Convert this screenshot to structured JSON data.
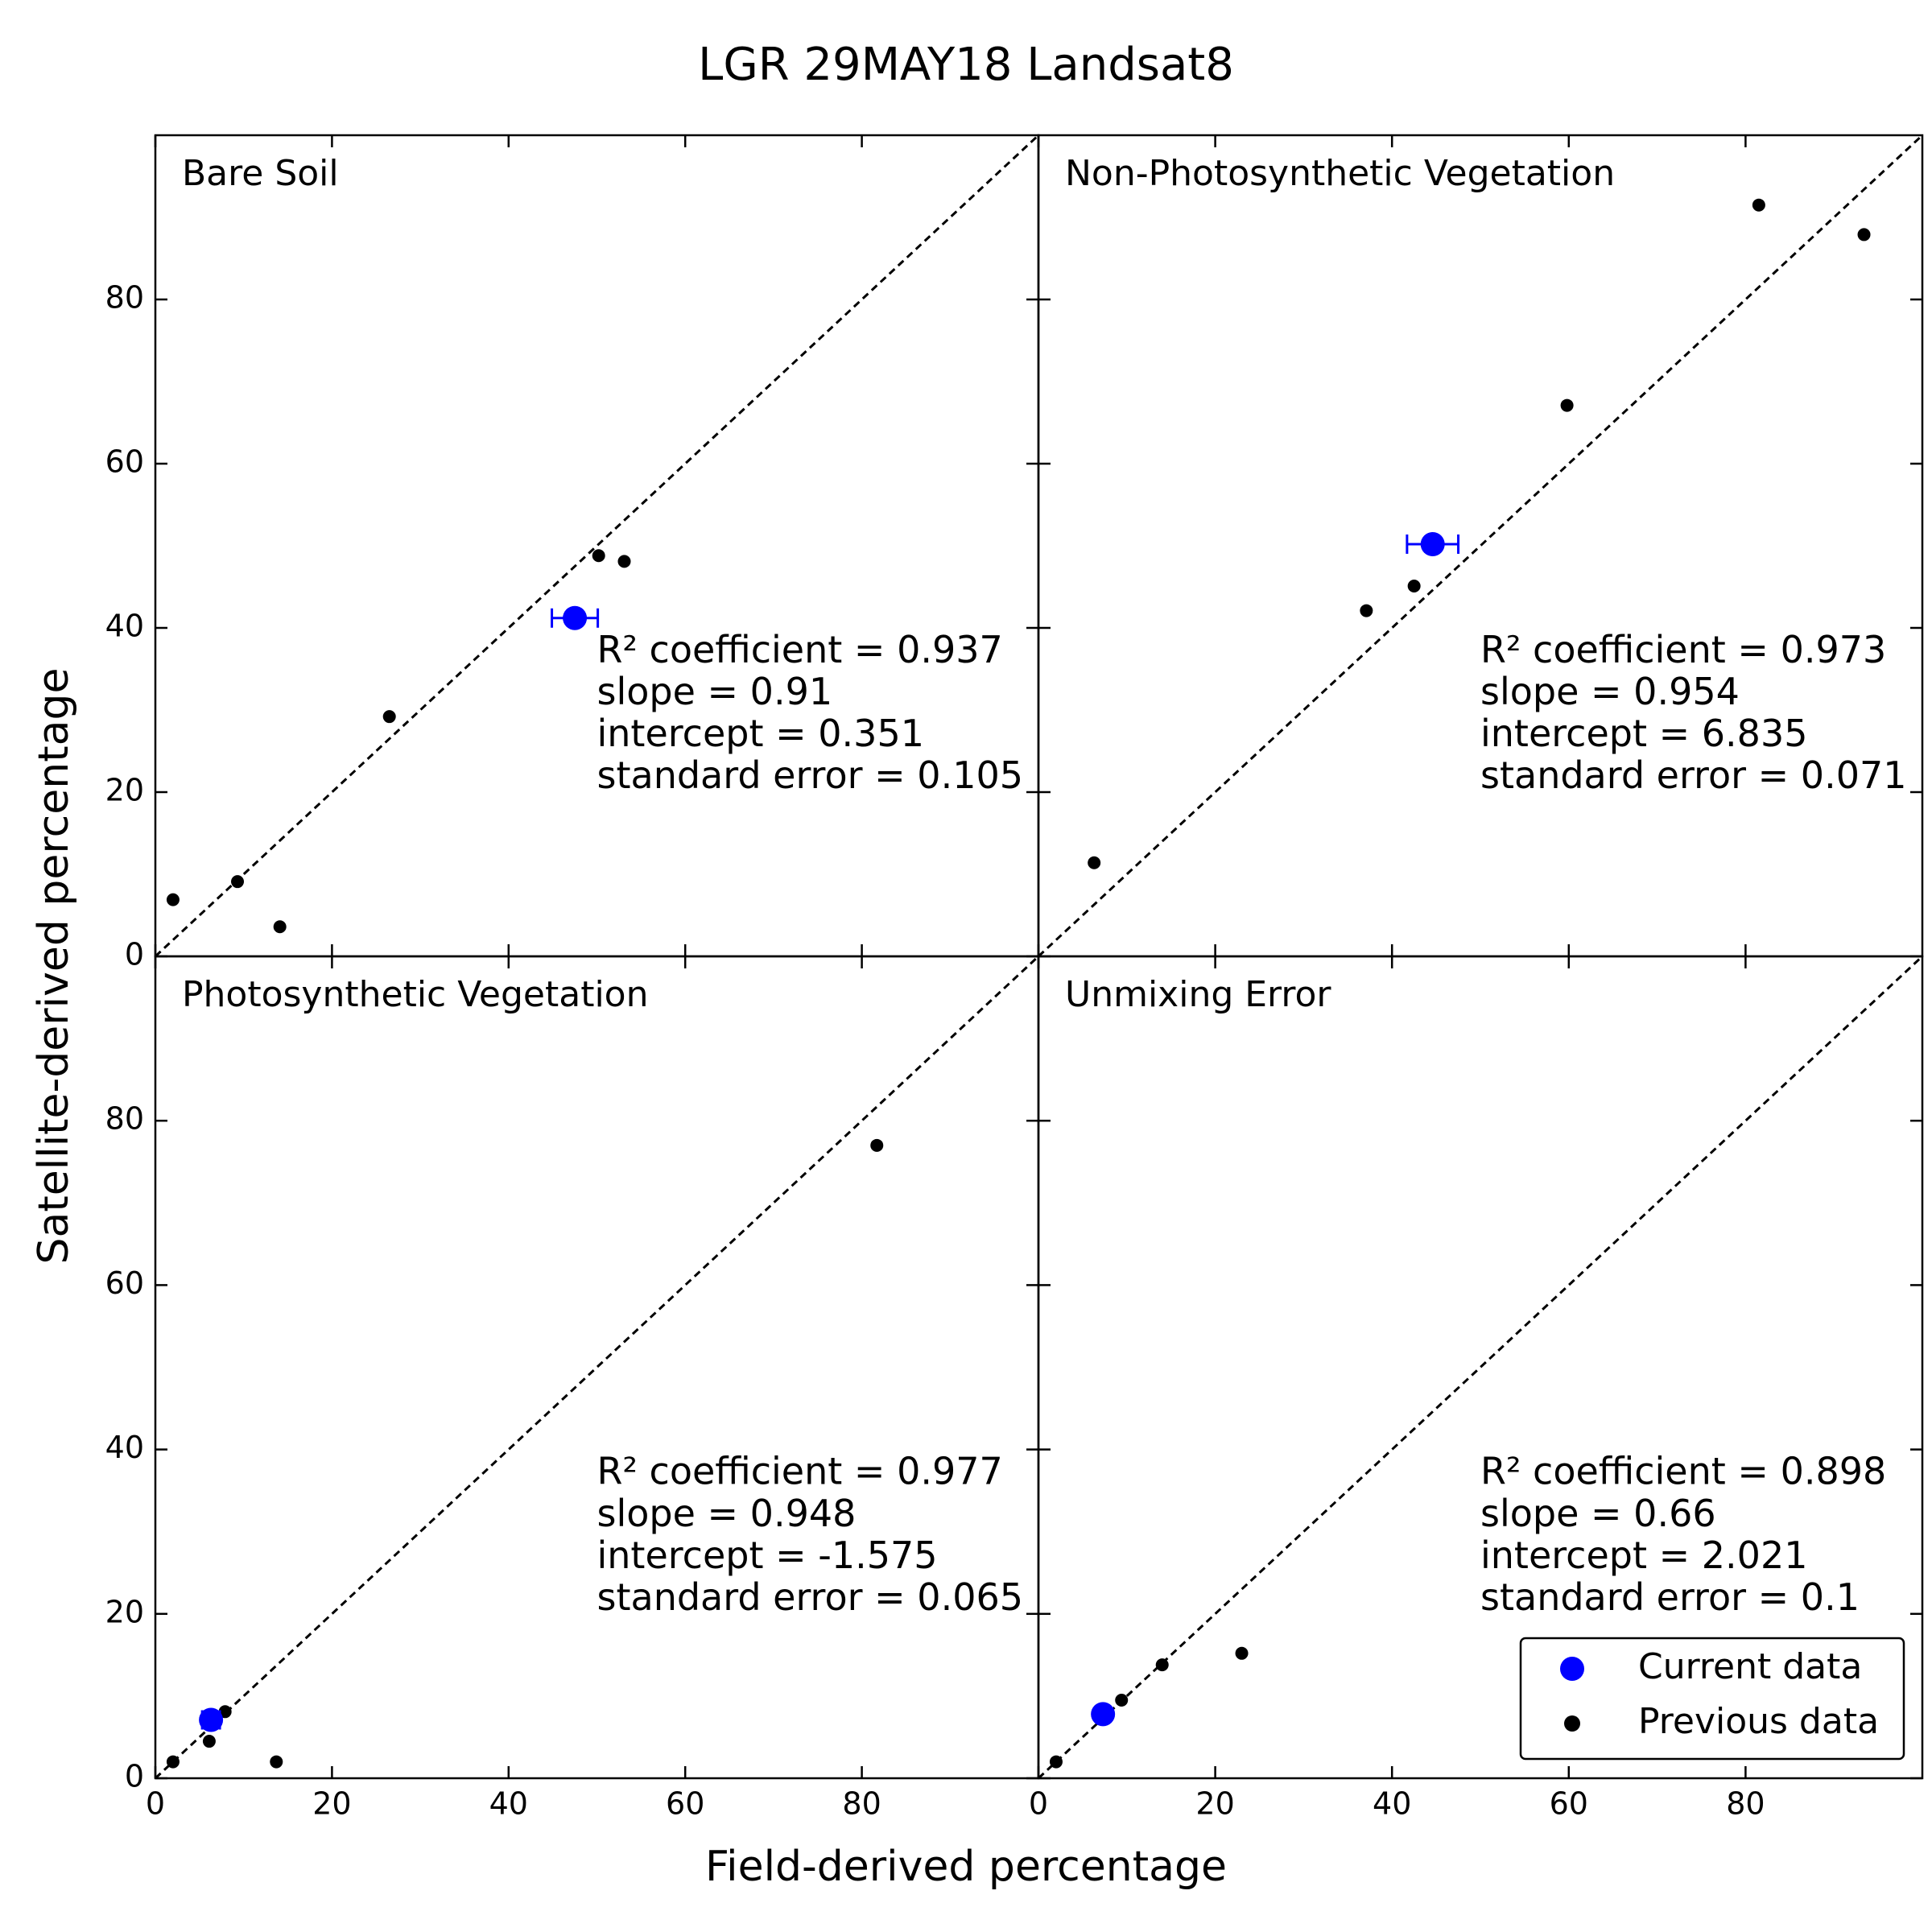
{
  "figure": {
    "title": "LGR  29MAY18  Landsat8",
    "xlabel": "Field-derived percentage",
    "ylabel": "Satellite-derived percentage"
  },
  "chart_data": [
    {
      "type": "scatter",
      "title": "Bare Soil",
      "xlim": [
        0,
        100
      ],
      "ylim": [
        0,
        100
      ],
      "xticks": [
        0,
        20,
        40,
        60,
        80
      ],
      "yticks": [
        0,
        20,
        40,
        60,
        80
      ],
      "identity_line": true,
      "stats": [
        "R² coefficient = 0.937",
        "slope = 0.91",
        "intercept = 0.351",
        "standard error = 0.105"
      ],
      "series": [
        {
          "name": "Current data",
          "color": "#0000ff",
          "x": [
            47.5
          ],
          "values": [
            41.2
          ],
          "xerr": [
            2.6
          ]
        },
        {
          "name": "Previous data",
          "color": "#000000",
          "x": [
            2,
            9.3,
            14.1,
            26.5,
            50.2,
            53.1
          ],
          "values": [
            6.9,
            9.1,
            3.6,
            29.2,
            48.8,
            48.1
          ]
        }
      ]
    },
    {
      "type": "scatter",
      "title": "Non-Photosynthetic Vegetation",
      "xlim": [
        0,
        100
      ],
      "ylim": [
        0,
        100
      ],
      "xticks": [
        0,
        20,
        40,
        60,
        80
      ],
      "yticks": [
        0,
        20,
        40,
        60,
        80
      ],
      "identity_line": true,
      "stats": [
        "R² coefficient = 0.973",
        "slope = 0.954",
        "intercept = 6.835",
        "standard error = 0.071"
      ],
      "series": [
        {
          "name": "Current data",
          "color": "#0000ff",
          "x": [
            44.6
          ],
          "values": [
            50.2
          ],
          "xerr": [
            2.9
          ]
        },
        {
          "name": "Previous data",
          "color": "#000000",
          "x": [
            6.3,
            37.1,
            42.5,
            59.8,
            81.5,
            93.4
          ],
          "values": [
            11.4,
            42.1,
            45.1,
            67.1,
            91.5,
            87.9
          ]
        }
      ]
    },
    {
      "type": "scatter",
      "title": "Photosynthetic Vegetation",
      "xlim": [
        0,
        100
      ],
      "ylim": [
        0,
        100
      ],
      "xticks": [
        0,
        20,
        40,
        60,
        80
      ],
      "yticks": [
        0,
        20,
        40,
        60,
        80
      ],
      "identity_line": true,
      "stats": [
        "R² coefficient = 0.977",
        "slope = 0.948",
        "intercept = -1.575",
        "standard error = 0.065"
      ],
      "series": [
        {
          "name": "Current data",
          "color": "#0000ff",
          "x": [
            6.3
          ],
          "values": [
            7.1
          ],
          "xerr": [
            1
          ]
        },
        {
          "name": "Previous data",
          "color": "#000000",
          "x": [
            2,
            6.1,
            7.9,
            13.7,
            81.7
          ],
          "values": [
            2,
            4.5,
            8.1,
            2,
            77
          ]
        }
      ]
    },
    {
      "type": "scatter",
      "title": "Unmixing Error",
      "xlim": [
        0,
        100
      ],
      "ylim": [
        0,
        100
      ],
      "xticks": [
        0,
        20,
        40,
        60,
        80
      ],
      "yticks": [
        0,
        20,
        40,
        60,
        80
      ],
      "identity_line": true,
      "legend": "lower right",
      "stats": [
        "R² coefficient = 0.898",
        "slope = 0.66",
        "intercept = 2.021",
        "standard error = 0.1"
      ],
      "series": [
        {
          "name": "Current data",
          "color": "#0000ff",
          "x": [
            7.3
          ],
          "values": [
            7.8
          ],
          "xerr": [
            0.5
          ]
        },
        {
          "name": "Previous data",
          "color": "#000000",
          "x": [
            2,
            9.4,
            14,
            23
          ],
          "values": [
            2,
            9.5,
            13.8,
            15.2
          ]
        }
      ]
    }
  ]
}
